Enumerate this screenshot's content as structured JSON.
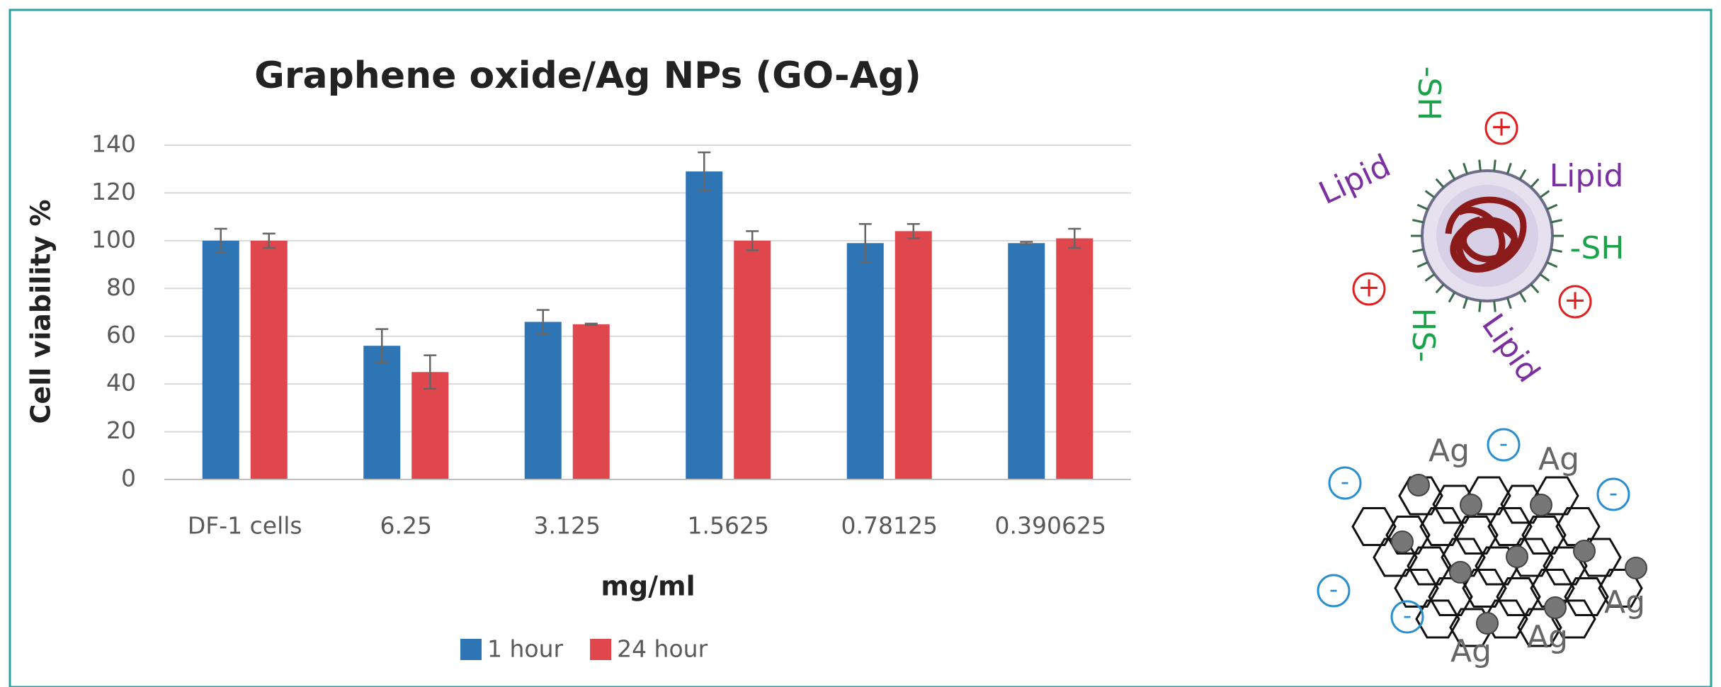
{
  "chart_data": {
    "type": "bar",
    "title": "Graphene oxide/Ag NPs (GO-Ag)",
    "x_label": "mg/ml",
    "y_label": "Cell viability %",
    "categories": [
      "DF-1 cells",
      "6.25",
      "3.125",
      "1.5625",
      "0.78125",
      "0.390625"
    ],
    "series": [
      {
        "name": "1 hour",
        "color": "#2e75b6",
        "values": [
          100,
          56,
          66,
          129,
          99,
          99
        ],
        "errors": [
          5,
          7,
          5,
          8,
          8,
          0.5
        ]
      },
      {
        "name": "24 hour",
        "color": "#e0474c",
        "values": [
          100,
          45,
          65,
          100,
          104,
          101
        ],
        "errors": [
          3,
          7,
          0.3,
          4,
          3,
          4
        ]
      }
    ],
    "ylim": [
      0,
      140
    ],
    "yticks": [
      0,
      20,
      40,
      60,
      80,
      100,
      120,
      140
    ],
    "grid": true,
    "legend": "bottom"
  },
  "illustration": {
    "lipid_particle": [
      "Lipid",
      "-SH",
      "+",
      "Lipid",
      "-SH",
      "+",
      "+",
      "HS-",
      "Lipid"
    ],
    "go_ag_sheet": [
      "Ag",
      "-",
      "Ag",
      "-",
      "-",
      "-",
      "-",
      "Ag",
      "Ag",
      "Ag"
    ]
  }
}
